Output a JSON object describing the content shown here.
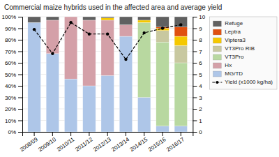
{
  "chart_data": {
    "type": "bar",
    "title": "Commercial maize hybrids used in the affected area and average yield",
    "categories": [
      "2008/09",
      "2009/10",
      "2010/11",
      "2011/12",
      "2012/13",
      "2013/14",
      "2014/15",
      "2015/16",
      "2016/17"
    ],
    "stacked": true,
    "series": [
      {
        "name": "MG/TD",
        "color": "#aec6e8",
        "values": [
          95,
          68,
          46,
          40,
          49,
          83,
          30,
          5,
          5
        ]
      },
      {
        "name": "Hx",
        "color": "#d4a0a8",
        "values": [
          0,
          29,
          54,
          57,
          48,
          10,
          0,
          0,
          0
        ]
      },
      {
        "name": "VT3Pro",
        "color": "#b8d8a0",
        "values": [
          0,
          0,
          0,
          0,
          0,
          0,
          65,
          73,
          55
        ]
      },
      {
        "name": "VT3Pro RIB",
        "color": "#c8c8a0",
        "values": [
          0,
          0,
          0,
          0,
          0,
          0,
          0,
          10,
          15
        ]
      },
      {
        "name": "Viptera3",
        "color": "#f5c800",
        "values": [
          0,
          0,
          0,
          0,
          2,
          0,
          2,
          2,
          8
        ]
      },
      {
        "name": "Leptra",
        "color": "#e05010",
        "values": [
          0,
          0,
          0,
          0,
          0,
          0,
          0,
          1,
          8
        ]
      },
      {
        "name": "Refuge",
        "color": "#606060",
        "values": [
          5,
          3,
          0,
          3,
          1,
          7,
          3,
          9,
          9
        ]
      },
      {
        "name": "Yield (x1000 kg/ha)",
        "type": "line",
        "axis": "y2",
        "color": "#000000",
        "line_style": "dashed",
        "marker": "circle",
        "values": [
          8.9,
          6.8,
          9.5,
          8.5,
          8.5,
          6.3,
          8.6,
          9.0,
          9.3
        ]
      }
    ],
    "ylim": [
      0,
      100
    ],
    "yticks": [
      {
        "value": 0,
        "label": "0%"
      },
      {
        "value": 10,
        "label": "10%"
      },
      {
        "value": 20,
        "label": "20%"
      },
      {
        "value": 30,
        "label": "30%"
      },
      {
        "value": 40,
        "label": "40%"
      },
      {
        "value": 50,
        "label": "50%"
      },
      {
        "value": 60,
        "label": "60%"
      },
      {
        "value": 70,
        "label": "70%"
      },
      {
        "value": 80,
        "label": "80%"
      },
      {
        "value": 90,
        "label": "90%"
      },
      {
        "value": 100,
        "label": "100%"
      }
    ],
    "y2lim": [
      0,
      10
    ],
    "y2ticks": [
      0,
      1,
      2,
      3,
      4,
      5,
      6,
      7,
      8,
      9,
      10
    ],
    "grid": true,
    "legend": "right"
  }
}
